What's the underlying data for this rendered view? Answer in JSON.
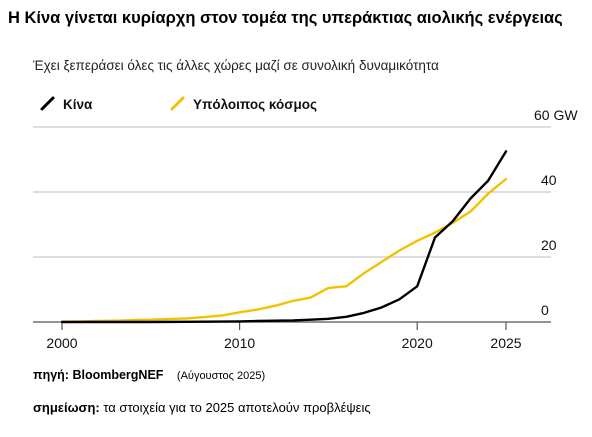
{
  "header": {
    "title": "Η Κίνα γίνεται κυρίαρχη στον τομέα της υπεράκτιας αιολικής ενέργειας",
    "subtitle": "Έχει ξεπεράσει όλες τις άλλες χώρες μαζί σε συνολική δυναμικότητα"
  },
  "footer": {
    "source_label": "πηγή:",
    "source_value": "BloombergNEF",
    "source_date": "(Αύγουστος 2025)",
    "note_label": "σημείωση:",
    "note_value": "τα στοιχεία για το 2025 αποτελούν προβλέψεις"
  },
  "colors": {
    "china": "#000000",
    "rest": "#f2c200",
    "grid": "#bdbdbd"
  },
  "chart_data": {
    "type": "line",
    "title": "Η Κίνα γίνεται κυρίαρχη στον τομέα της υπεράκτιας αιολικής ενέργειας",
    "subtitle": "Έχει ξεπεράσει όλες τις άλλες χώρες μαζί σε συνολική δυναμικότητα",
    "x_ticks": [
      2000,
      2010,
      2020,
      2025
    ],
    "y_ticks": [
      0,
      20,
      40,
      60
    ],
    "y_tick_labels": [
      "0",
      "20",
      "40",
      "60 GW"
    ],
    "xlim": [
      1999,
      2027
    ],
    "ylim": [
      0,
      60
    ],
    "grid": true,
    "legend_position": "top-left",
    "series": [
      {
        "name": "Κίνα",
        "color": "#000000",
        "x": [
          2000,
          2005,
          2008,
          2010,
          2011,
          2012,
          2013,
          2014,
          2015,
          2016,
          2017,
          2018,
          2019,
          2020,
          2021,
          2022,
          2023,
          2024,
          2025
        ],
        "y": [
          0,
          0,
          0.1,
          0.2,
          0.3,
          0.4,
          0.5,
          0.7,
          1.0,
          1.6,
          2.8,
          4.5,
          7.0,
          11.0,
          26.0,
          31.0,
          38.0,
          43.5,
          52.5
        ]
      },
      {
        "name": "Υπόλοιπος κόσμος",
        "color": "#f2c200",
        "x": [
          2000,
          2001,
          2002,
          2003,
          2004,
          2005,
          2006,
          2007,
          2008,
          2009,
          2010,
          2011,
          2012,
          2013,
          2014,
          2015,
          2016,
          2017,
          2018,
          2019,
          2020,
          2021,
          2022,
          2023,
          2024,
          2025
        ],
        "y": [
          0.1,
          0.2,
          0.3,
          0.4,
          0.6,
          0.7,
          0.9,
          1.1,
          1.5,
          2.0,
          3.0,
          3.8,
          5.0,
          6.5,
          7.5,
          10.5,
          11.0,
          15.0,
          18.5,
          22.0,
          25.0,
          27.5,
          30.5,
          34.0,
          39.5,
          44.0
        ]
      }
    ]
  }
}
